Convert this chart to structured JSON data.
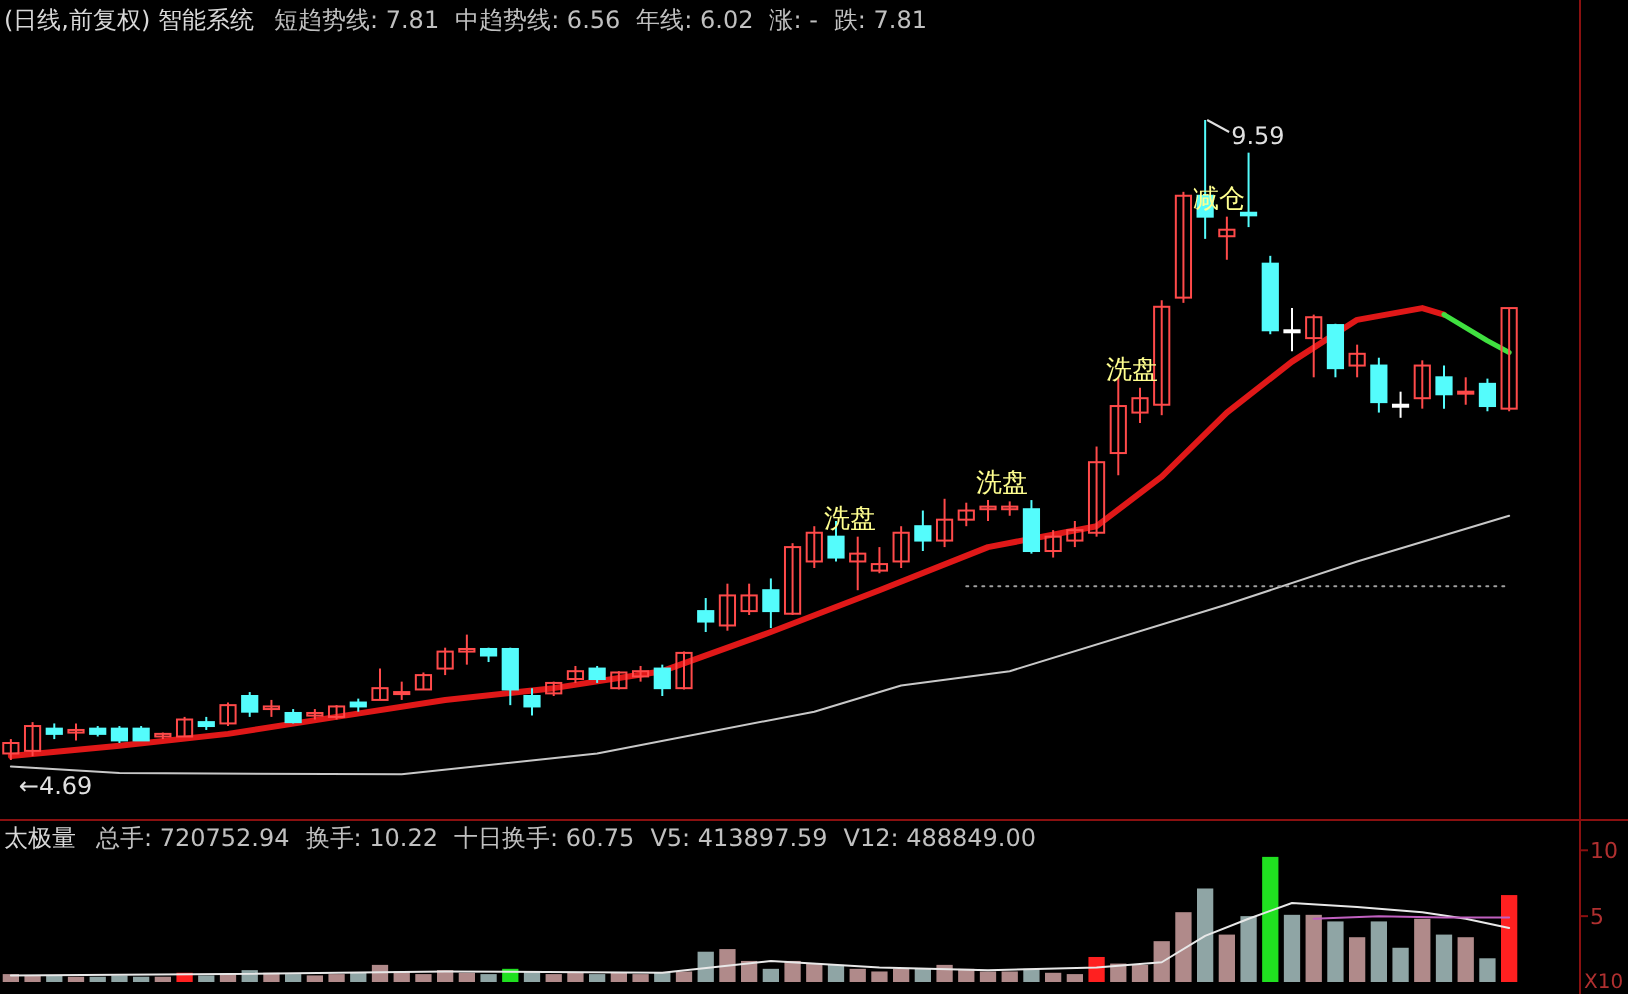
{
  "chart_data": [
    {
      "type": "candlestick",
      "title": "(日线,前复权) 智能系统",
      "annotations": [
        "短趋势线: 7.81",
        "中趋势线: 6.56",
        "年线: 6.02",
        "涨: -",
        "跌: 7.81",
        {
          "text": "←4.69",
          "y": 4.69
        },
        "9.59",
        {
          "text": "洗盘",
          "y": 6.4
        },
        {
          "text": "洗盘",
          "y": 6.67
        },
        {
          "text": "洗盘",
          "y": 7.54
        },
        {
          "text": "减仓",
          "y": 8.85
        }
      ],
      "categories": [
        null,
        null,
        null,
        null,
        null,
        null,
        null,
        null,
        null,
        null,
        null,
        null,
        null,
        null,
        null,
        null,
        null,
        null,
        null,
        null,
        null,
        null,
        null,
        null,
        null,
        null,
        null,
        null,
        null,
        null,
        null,
        null,
        null,
        null,
        null,
        null,
        null,
        null,
        null,
        null,
        null,
        null,
        null,
        null,
        null,
        null,
        null,
        null,
        null,
        null,
        null,
        null,
        null,
        null,
        null,
        null,
        null,
        null,
        null,
        null,
        null,
        null,
        null,
        null,
        null,
        null,
        null,
        null,
        null,
        null
      ],
      "ohlc": [
        [
          4.74,
          4.85,
          4.69,
          4.82
        ],
        [
          4.76,
          4.98,
          4.72,
          4.95
        ],
        [
          4.93,
          4.97,
          4.85,
          4.89
        ],
        [
          4.9,
          4.97,
          4.84,
          4.92
        ],
        [
          4.93,
          4.95,
          4.87,
          4.89
        ],
        [
          4.93,
          4.95,
          4.82,
          4.84
        ],
        [
          4.93,
          4.95,
          4.84,
          4.84
        ],
        [
          4.87,
          4.9,
          4.85,
          4.89
        ],
        [
          4.87,
          5.02,
          4.87,
          5.0
        ],
        [
          4.98,
          5.02,
          4.92,
          4.95
        ],
        [
          4.97,
          5.13,
          4.95,
          5.11
        ],
        [
          5.18,
          5.21,
          5.02,
          5.06
        ],
        [
          5.08,
          5.15,
          5.02,
          5.1
        ],
        [
          5.05,
          5.08,
          4.97,
          4.98
        ],
        [
          5.03,
          5.08,
          5.0,
          5.05
        ],
        [
          5.02,
          5.11,
          5.0,
          5.1
        ],
        [
          5.13,
          5.16,
          5.06,
          5.1
        ],
        [
          5.15,
          5.39,
          5.15,
          5.24
        ],
        [
          5.2,
          5.29,
          5.15,
          5.21
        ],
        [
          5.23,
          5.36,
          5.23,
          5.34
        ],
        [
          5.39,
          5.55,
          5.34,
          5.52
        ],
        [
          5.52,
          5.65,
          5.42,
          5.54
        ],
        [
          5.54,
          5.55,
          5.44,
          5.49
        ],
        [
          5.54,
          5.55,
          5.11,
          5.23
        ],
        [
          5.18,
          5.24,
          5.03,
          5.1
        ],
        [
          5.2,
          5.29,
          5.18,
          5.28
        ],
        [
          5.31,
          5.41,
          5.28,
          5.37
        ],
        [
          5.39,
          5.41,
          5.28,
          5.31
        ],
        [
          5.24,
          5.37,
          5.23,
          5.36
        ],
        [
          5.33,
          5.41,
          5.29,
          5.37
        ],
        [
          5.39,
          5.42,
          5.18,
          5.24
        ],
        [
          5.24,
          5.52,
          5.23,
          5.51
        ],
        [
          5.83,
          5.93,
          5.67,
          5.75
        ],
        [
          5.72,
          6.04,
          5.68,
          5.95
        ],
        [
          5.83,
          6.04,
          5.8,
          5.95
        ],
        [
          5.99,
          6.08,
          5.7,
          5.83
        ],
        [
          5.81,
          6.35,
          5.8,
          6.32
        ],
        [
          6.21,
          6.48,
          6.16,
          6.43
        ],
        [
          6.4,
          6.52,
          6.21,
          6.24
        ],
        [
          6.21,
          6.4,
          5.99,
          6.27
        ],
        [
          6.14,
          6.32,
          6.12,
          6.19
        ],
        [
          6.21,
          6.48,
          6.16,
          6.43
        ],
        [
          6.48,
          6.6,
          6.29,
          6.37
        ],
        [
          6.37,
          6.69,
          6.32,
          6.53
        ],
        [
          6.53,
          6.66,
          6.48,
          6.6
        ],
        [
          6.61,
          6.68,
          6.52,
          6.63
        ],
        [
          6.61,
          6.67,
          6.56,
          6.63
        ],
        [
          6.61,
          6.68,
          6.27,
          6.29
        ],
        [
          6.29,
          6.45,
          6.24,
          6.4
        ],
        [
          6.37,
          6.52,
          6.32,
          6.45
        ],
        [
          6.43,
          7.09,
          6.4,
          6.97
        ],
        [
          7.04,
          7.62,
          6.87,
          7.4
        ],
        [
          7.35,
          7.54,
          7.27,
          7.46
        ],
        [
          7.41,
          8.21,
          7.33,
          8.16
        ],
        [
          8.23,
          9.04,
          8.19,
          9.01
        ],
        [
          9.01,
          9.59,
          8.68,
          8.85
        ],
        [
          8.7,
          8.85,
          8.52,
          8.75
        ],
        [
          8.88,
          9.34,
          8.77,
          8.86
        ],
        [
          8.49,
          8.55,
          7.95,
          7.98
        ],
        [
          7.98,
          8.15,
          7.82,
          7.97
        ],
        [
          7.92,
          8.1,
          7.62,
          8.08
        ],
        [
          8.02,
          8.03,
          7.62,
          7.69
        ],
        [
          7.71,
          7.87,
          7.62,
          7.8
        ],
        [
          7.71,
          7.77,
          7.35,
          7.43
        ],
        [
          7.41,
          7.51,
          7.31,
          7.4
        ],
        [
          7.46,
          7.75,
          7.38,
          7.71
        ],
        [
          7.62,
          7.71,
          7.38,
          7.49
        ],
        [
          7.51,
          7.62,
          7.41,
          7.51
        ],
        [
          7.57,
          7.61,
          7.36,
          7.4
        ],
        [
          7.38,
          8.15,
          7.36,
          8.15
        ]
      ],
      "colors": [
        "#ff4a4a",
        "#ff4a4a",
        "#54fcfc",
        "#ff4a4a",
        "#54fcfc",
        "#54fcfc",
        "#54fcfc",
        "#ff4a4a",
        "#ff4a4a",
        "#54fcfc",
        "#ff4a4a",
        "#54fcfc",
        "#ff4a4a",
        "#54fcfc",
        "#ff4a4a",
        "#ff4a4a",
        "#54fcfc",
        "#ff4a4a",
        "#ff4a4a",
        "#ff4a4a",
        "#ff4a4a",
        "#ff4a4a",
        "#54fcfc",
        "#54fcfc",
        "#54fcfc",
        "#ff4a4a",
        "#ff4a4a",
        "#54fcfc",
        "#ff4a4a",
        "#ff4a4a",
        "#54fcfc",
        "#ff4a4a",
        "#54fcfc",
        "#ff4a4a",
        "#ff4a4a",
        "#54fcfc",
        "#ff4a4a",
        "#ff4a4a",
        "#54fcfc",
        "#ff4a4a",
        "#ff4a4a",
        "#ff4a4a",
        "#54fcfc",
        "#ff4a4a",
        "#ff4a4a",
        "#ff4a4a",
        "#ff4a4a",
        "#54fcfc",
        "#ff4a4a",
        "#ff4a4a",
        "#ff4a4a",
        "#ff4a4a",
        "#ff4a4a",
        "#ff4a4a",
        "#ff4a4a",
        "#54fcfc",
        "#ff4a4a",
        "#54fcfc",
        "#54fcfc",
        "#ffffff",
        "#ff4a4a",
        "#54fcfc",
        "#ff4a4a",
        "#54fcfc",
        "#ffffff",
        "#ff4a4a",
        "#54fcfc",
        "#ff4a4a",
        "#54fcfc",
        "#ff4a4a"
      ],
      "series": [
        {
          "type": "line",
          "color": "#e01818",
          "values": [
            4.72,
            null,
            null,
            null,
            null,
            4.8,
            null,
            null,
            null,
            null,
            4.89,
            null,
            null,
            null,
            null,
            5.02,
            null,
            null,
            null,
            null,
            5.15,
            null,
            null,
            null,
            null,
            5.24,
            null,
            null,
            null,
            null,
            5.37,
            null,
            null,
            null,
            null,
            5.67,
            null,
            null,
            null,
            null,
            5.99,
            null,
            null,
            null,
            null,
            6.32,
            null,
            null,
            null,
            null,
            6.48,
            null,
            null,
            6.86,
            null,
            null,
            7.35,
            null,
            null,
            7.74,
            null,
            null,
            8.06,
            null,
            null,
            8.15,
            8.1,
            null,
            null,
            null
          ]
        },
        {
          "type": "line",
          "color": "#40e040",
          "values": [
            null,
            null,
            null,
            null,
            null,
            null,
            null,
            null,
            null,
            null,
            null,
            null,
            null,
            null,
            null,
            null,
            null,
            null,
            null,
            null,
            null,
            null,
            null,
            null,
            null,
            null,
            null,
            null,
            null,
            null,
            null,
            null,
            null,
            null,
            null,
            null,
            null,
            null,
            null,
            null,
            null,
            null,
            null,
            null,
            null,
            null,
            null,
            null,
            null,
            null,
            null,
            null,
            null,
            null,
            null,
            null,
            null,
            null,
            null,
            null,
            null,
            null,
            null,
            null,
            null,
            null,
            8.1,
            null,
            7.9,
            7.81
          ]
        },
        {
          "type": "line",
          "color": "#c8c8c8",
          "values": [
            4.64,
            null,
            null,
            null,
            null,
            4.59,
            null,
            null,
            null,
            null,
            null,
            null,
            null,
            null,
            null,
            null,
            null,
            null,
            4.58,
            null,
            null,
            null,
            null,
            null,
            null,
            null,
            null,
            4.74,
            null,
            null,
            null,
            null,
            null,
            null,
            null,
            null,
            null,
            5.06,
            null,
            null,
            null,
            5.26,
            null,
            null,
            null,
            null,
            5.37,
            null,
            null,
            null,
            null,
            null,
            null,
            null,
            null,
            null,
            5.88,
            null,
            null,
            null,
            null,
            null,
            6.21,
            null,
            null,
            null,
            null,
            null,
            null,
            6.56
          ]
        },
        {
          "type": "line",
          "color": "#a0a0a0",
          "line_style": "dotted",
          "values": [
            null,
            null,
            null,
            null,
            null,
            null,
            null,
            null,
            null,
            null,
            null,
            null,
            null,
            null,
            null,
            null,
            null,
            null,
            null,
            null,
            null,
            null,
            null,
            null,
            null,
            null,
            null,
            null,
            null,
            null,
            null,
            null,
            null,
            null,
            null,
            null,
            null,
            null,
            null,
            null,
            null,
            null,
            null,
            null,
            6.02,
            null,
            null,
            null,
            null,
            null,
            null,
            null,
            null,
            null,
            null,
            null,
            null,
            null,
            null,
            null,
            null,
            null,
            null,
            null,
            null,
            null,
            null,
            null,
            null,
            6.02
          ]
        }
      ]
    },
    {
      "type": "bar",
      "title": "太极量",
      "tick_labels": "y",
      "ylabel": "X10",
      "annotations": [
        "总手: 720752.94",
        "换手: 10.22",
        "十日换手: 60.75",
        "V5: 413897.59",
        "V12: 488849.00"
      ],
      "categories": [
        null,
        null,
        null,
        null,
        null,
        null,
        null,
        null,
        null,
        null,
        null,
        null,
        null,
        null,
        null,
        null,
        null,
        null,
        null,
        null,
        null,
        null,
        null,
        null,
        null,
        null,
        null,
        null,
        null,
        null,
        null,
        null,
        null,
        null,
        null,
        null,
        null,
        null,
        null,
        null,
        null,
        null,
        null,
        null,
        null,
        null,
        null,
        null,
        null,
        null,
        null,
        null,
        null,
        null,
        null,
        null,
        null,
        null,
        null,
        null,
        null,
        null,
        null,
        null,
        null,
        null,
        null,
        null,
        null,
        null
      ],
      "values": [
        0.6,
        0.5,
        0.5,
        0.4,
        0.4,
        0.5,
        0.4,
        0.4,
        0.7,
        0.5,
        0.6,
        0.9,
        0.7,
        0.6,
        0.5,
        0.6,
        0.7,
        1.3,
        0.8,
        0.6,
        0.9,
        0.7,
        0.6,
        1.0,
        0.8,
        0.6,
        0.7,
        0.6,
        0.7,
        0.6,
        0.7,
        0.8,
        2.3,
        2.5,
        1.6,
        1.0,
        1.6,
        1.4,
        1.3,
        1.0,
        0.8,
        1.0,
        1.0,
        1.3,
        1.0,
        0.8,
        0.8,
        1.0,
        0.7,
        0.6,
        1.9,
        1.4,
        1.3,
        3.1,
        5.3,
        7.1,
        3.6,
        5.0,
        9.5,
        5.1,
        5.1,
        4.6,
        3.4,
        4.6,
        2.6,
        4.8,
        3.6,
        3.4,
        1.8,
        6.6
      ],
      "colors": [
        "#b08a8a",
        "#b08a8a",
        "#8fa5a5",
        "#b08a8a",
        "#8fa5a5",
        "#8fa5a5",
        "#8fa5a5",
        "#b08a8a",
        "#ff2020",
        "#8fa5a5",
        "#b08a8a",
        "#8fa5a5",
        "#b08a8a",
        "#8fa5a5",
        "#b08a8a",
        "#b08a8a",
        "#8fa5a5",
        "#b08a8a",
        "#b08a8a",
        "#b08a8a",
        "#b08a8a",
        "#b08a8a",
        "#8fa5a5",
        "#20e020",
        "#8fa5a5",
        "#b08a8a",
        "#b08a8a",
        "#8fa5a5",
        "#b08a8a",
        "#b08a8a",
        "#8fa5a5",
        "#b08a8a",
        "#8fa5a5",
        "#b08a8a",
        "#b08a8a",
        "#8fa5a5",
        "#b08a8a",
        "#b08a8a",
        "#8fa5a5",
        "#b08a8a",
        "#b08a8a",
        "#b08a8a",
        "#8fa5a5",
        "#b08a8a",
        "#b08a8a",
        "#b08a8a",
        "#b08a8a",
        "#8fa5a5",
        "#b08a8a",
        "#b08a8a",
        "#ff2020",
        "#b08a8a",
        "#b08a8a",
        "#b08a8a",
        "#b08a8a",
        "#8fa5a5",
        "#b08a8a",
        "#8fa5a5",
        "#20e020",
        "#8fa5a5",
        "#b08a8a",
        "#8fa5a5",
        "#b08a8a",
        "#8fa5a5",
        "#8fa5a5",
        "#b08a8a",
        "#8fa5a5",
        "#b08a8a",
        "#8fa5a5",
        "#ff2020"
      ],
      "series": [
        {
          "type": "line",
          "color": "#e8e8e8",
          "values": [
            0.5,
            null,
            null,
            null,
            null,
            null,
            null,
            null,
            null,
            null,
            0.6,
            null,
            null,
            null,
            null,
            null,
            null,
            null,
            null,
            null,
            0.8,
            null,
            null,
            null,
            null,
            null,
            null,
            null,
            null,
            null,
            0.7,
            null,
            null,
            null,
            null,
            1.6,
            null,
            null,
            null,
            null,
            1.1,
            null,
            null,
            null,
            null,
            0.9,
            null,
            null,
            null,
            null,
            1.1,
            null,
            null,
            1.5,
            null,
            3.5,
            null,
            4.8,
            null,
            6.0,
            null,
            null,
            5.7,
            null,
            null,
            5.3,
            null,
            4.8,
            null,
            4.1
          ]
        },
        {
          "type": "line",
          "color": "#c060c0",
          "values": [
            null,
            null,
            null,
            null,
            null,
            null,
            null,
            null,
            null,
            null,
            null,
            null,
            null,
            null,
            null,
            null,
            null,
            null,
            null,
            null,
            null,
            null,
            null,
            null,
            null,
            null,
            null,
            null,
            null,
            null,
            null,
            null,
            null,
            null,
            null,
            null,
            null,
            null,
            null,
            null,
            null,
            null,
            null,
            null,
            null,
            null,
            null,
            null,
            null,
            null,
            null,
            null,
            null,
            null,
            null,
            null,
            null,
            null,
            null,
            null,
            4.8,
            null,
            null,
            5.0,
            null,
            null,
            4.9,
            null,
            null,
            4.9
          ]
        }
      ],
      "ylim": [
        0,
        12.3
      ],
      "yticks": [
        5,
        10
      ]
    }
  ]
}
